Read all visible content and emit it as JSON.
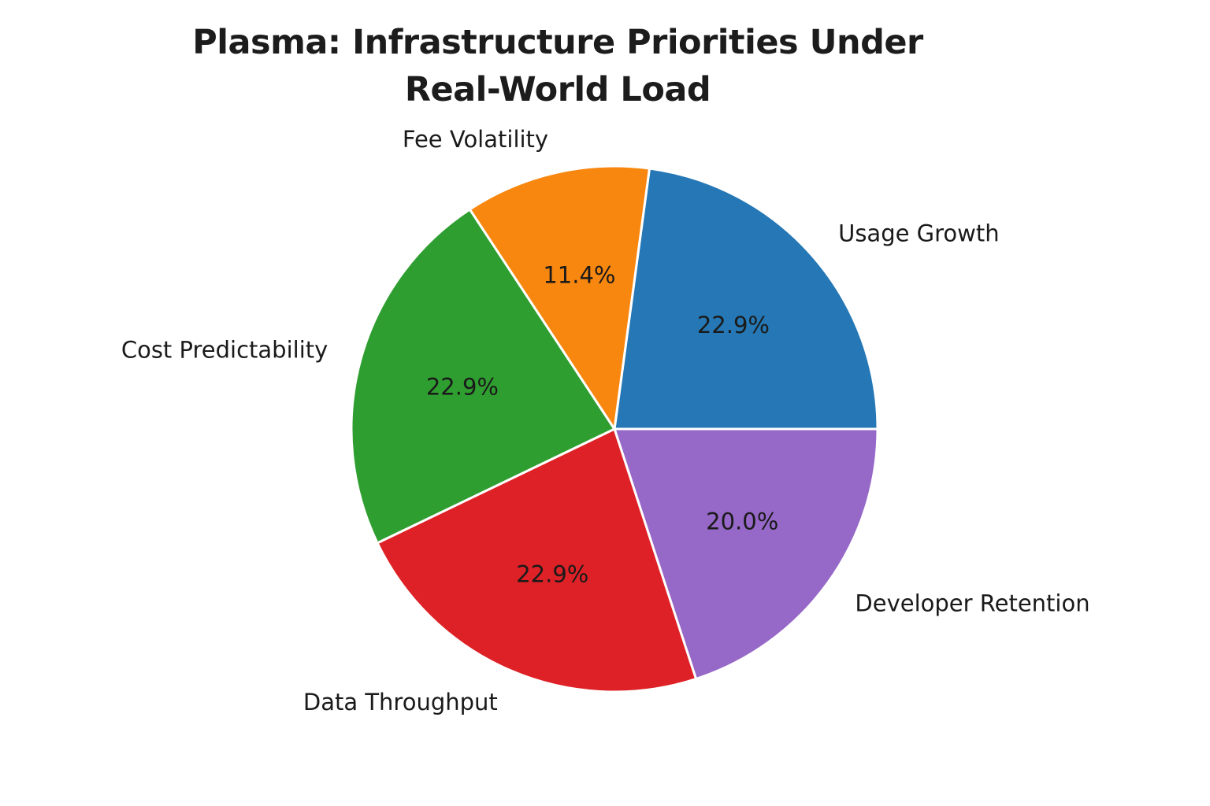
{
  "title_lines": [
    "Plasma: Infrastructure Priorities Under",
    "Real-World Load"
  ],
  "chart_data": {
    "type": "pie",
    "title": "Plasma: Infrastructure Priorities Under Real-World Load",
    "legend": "none",
    "background": "#ffffff",
    "text_color": "#1a1a1a",
    "separator_color": "#ffffff",
    "start_angle_deg": 82.35,
    "direction": "clockwise",
    "pct_label_distance": 0.6,
    "category_label_distance": 1.13,
    "slices": [
      {
        "label": "Usage Growth",
        "pct": 22.9,
        "pct_label": "22.9%",
        "color": "#2578b5"
      },
      {
        "label": "Developer Retention",
        "pct": 20.0,
        "pct_label": "20.0%",
        "color": "#9668c8"
      },
      {
        "label": "Data Throughput",
        "pct": 22.9,
        "pct_label": "22.9%",
        "color": "#de2126"
      },
      {
        "label": "Cost Predictability",
        "pct": 22.9,
        "pct_label": "22.9%",
        "color": "#2f9e30"
      },
      {
        "label": "Fee Volatility",
        "pct": 11.4,
        "pct_label": "11.4%",
        "color": "#f8870f"
      }
    ]
  }
}
